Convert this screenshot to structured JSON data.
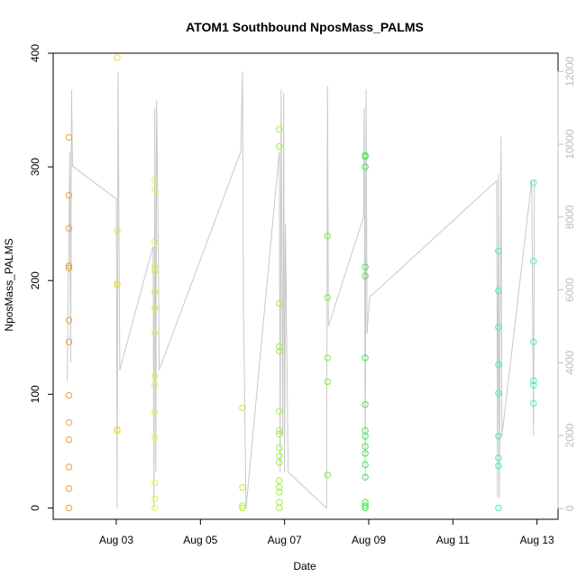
{
  "chart_data": {
    "type": "scatter",
    "title": "ATOM1 Southbound NposMass_PALMS",
    "xlabel": "Date",
    "ylabel": "NposMass_PALMS",
    "x_axis": {
      "type": "date",
      "range": [
        "2016-08-01T12:00",
        "2016-08-13T12:00"
      ],
      "ticks": [
        {
          "value": "2016-08-03",
          "label": "Aug 03"
        },
        {
          "value": "2016-08-05",
          "label": "Aug 05"
        },
        {
          "value": "2016-08-07",
          "label": "Aug 07"
        },
        {
          "value": "2016-08-09",
          "label": "Aug 09"
        },
        {
          "value": "2016-08-11",
          "label": "Aug 11"
        },
        {
          "value": "2016-08-13",
          "label": "Aug 13"
        }
      ]
    },
    "y_axis": {
      "range": [
        -10,
        400
      ],
      "ticks": [
        0,
        100,
        200,
        300,
        400
      ]
    },
    "y2_axis": {
      "range": [
        -300,
        12500
      ],
      "ticks": [
        0,
        2000,
        4000,
        6000,
        8000,
        10000,
        12000
      ],
      "color": "#bdbdbd"
    },
    "grid": false,
    "legend": "none",
    "colors": {
      "line": "#c8c8c8",
      "point_gradient": [
        "#e8a040",
        "#f0e040",
        "#b0f040",
        "#40e040",
        "#40f0a0"
      ]
    },
    "point_groups": [
      {
        "x": "2016-08-01T21:00",
        "color": "#e8a040",
        "y": [
          0,
          17,
          36,
          60,
          75,
          99,
          146,
          165,
          211,
          213,
          246,
          275,
          326
        ]
      },
      {
        "x": "2016-08-03T00:30",
        "color": "#f0e040",
        "y": [
          68,
          69,
          196,
          197,
          244,
          396
        ]
      },
      {
        "x": "2016-08-03T22:00",
        "color": "#e6f040",
        "y": [
          0,
          8,
          22,
          62,
          84,
          108,
          116,
          154,
          176,
          190,
          208,
          212,
          234,
          280,
          288
        ]
      },
      {
        "x": "2016-08-06T00:00",
        "color": "#b8f040",
        "y": [
          0,
          2,
          18,
          88
        ]
      },
      {
        "x": "2016-08-06T21:00",
        "color": "#a0f040",
        "y": [
          0,
          5,
          14,
          18,
          24,
          40,
          46,
          53,
          65,
          68,
          85,
          138,
          142,
          180,
          318,
          333
        ]
      },
      {
        "x": "2016-08-08T00:30",
        "color": "#78f040",
        "y": [
          29,
          111,
          132,
          185,
          239
        ]
      },
      {
        "x": "2016-08-08T22:00",
        "color": "#40e848",
        "y": [
          0,
          2,
          5,
          27,
          38,
          48,
          54,
          63,
          68,
          91,
          132,
          204,
          212,
          300,
          309,
          310
        ]
      },
      {
        "x": "2016-08-12T02:00",
        "color": "#48f0a0",
        "y": [
          0,
          37,
          44,
          63,
          101,
          126,
          159,
          191,
          226
        ]
      },
      {
        "x": "2016-08-12T22:00",
        "color": "#48f0c0",
        "y": [
          92,
          108,
          112,
          146,
          217,
          286
        ]
      }
    ],
    "line_series": {
      "axis": "y2",
      "points": [
        [
          "2016-08-01T20:00",
          3500
        ],
        [
          "2016-08-01T21:30",
          9800
        ],
        [
          "2016-08-01T22:00",
          4000
        ],
        [
          "2016-08-01T22:30",
          11500
        ],
        [
          "2016-08-01T23:00",
          9400
        ],
        [
          "2016-08-03T00:00",
          8500
        ],
        [
          "2016-08-03T00:30",
          0
        ],
        [
          "2016-08-03T01:00",
          12000
        ],
        [
          "2016-08-03T02:00",
          3800
        ],
        [
          "2016-08-03T21:00",
          7200
        ],
        [
          "2016-08-03T21:30",
          0
        ],
        [
          "2016-08-03T22:00",
          11000
        ],
        [
          "2016-08-03T22:30",
          1000
        ],
        [
          "2016-08-03T23:00",
          11200
        ],
        [
          "2016-08-04T00:00",
          7000
        ],
        [
          "2016-08-04T00:30",
          3800
        ],
        [
          "2016-08-05T23:00",
          9800
        ],
        [
          "2016-08-06T00:00",
          12000
        ],
        [
          "2016-08-06T00:30",
          5800
        ],
        [
          "2016-08-06T02:00",
          0
        ],
        [
          "2016-08-06T21:00",
          9800
        ],
        [
          "2016-08-06T21:30",
          1000
        ],
        [
          "2016-08-06T22:00",
          11500
        ],
        [
          "2016-08-06T23:00",
          2000
        ],
        [
          "2016-08-06T23:30",
          11400
        ],
        [
          "2016-08-07T00:00",
          1000
        ],
        [
          "2016-08-07T00:30",
          7800
        ],
        [
          "2016-08-07T02:00",
          1000
        ],
        [
          "2016-08-08T00:00",
          0
        ],
        [
          "2016-08-08T00:30",
          11600
        ],
        [
          "2016-08-08T01:00",
          5000
        ],
        [
          "2016-08-08T21:00",
          8000
        ],
        [
          "2016-08-08T21:30",
          11000
        ],
        [
          "2016-08-08T22:00",
          800
        ],
        [
          "2016-08-08T22:30",
          11500
        ],
        [
          "2016-08-08T23:00",
          4800
        ],
        [
          "2016-08-09T00:30",
          5800
        ],
        [
          "2016-08-12T01:00",
          9000
        ],
        [
          "2016-08-12T01:30",
          300
        ],
        [
          "2016-08-12T02:00",
          9200
        ],
        [
          "2016-08-12T02:30",
          300
        ],
        [
          "2016-08-12T03:30",
          10200
        ],
        [
          "2016-08-12T04:00",
          2000
        ],
        [
          "2016-08-12T21:00",
          9000
        ],
        [
          "2016-08-12T22:00",
          2000
        ],
        [
          "2016-08-12T22:30",
          9000
        ]
      ]
    }
  }
}
